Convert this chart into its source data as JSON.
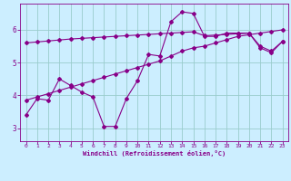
{
  "xlabel": "Windchill (Refroidissement éolien,°C)",
  "bg_color": "#cceeff",
  "grid_color": "#99cccc",
  "line_color": "#880088",
  "xlim": [
    -0.5,
    23.5
  ],
  "ylim": [
    2.6,
    6.8
  ],
  "xticks": [
    0,
    1,
    2,
    3,
    4,
    5,
    6,
    7,
    8,
    9,
    10,
    11,
    12,
    13,
    14,
    15,
    16,
    17,
    18,
    19,
    20,
    21,
    22,
    23
  ],
  "yticks": [
    3,
    4,
    5,
    6
  ],
  "line1_x": [
    0,
    1,
    2,
    3,
    4,
    5,
    6,
    7,
    8,
    9,
    10,
    11,
    12,
    13,
    14,
    15,
    16,
    17,
    18,
    19,
    20,
    21,
    22,
    23
  ],
  "line1_y": [
    3.4,
    3.9,
    3.85,
    4.5,
    4.3,
    4.1,
    3.95,
    3.05,
    3.05,
    3.9,
    4.45,
    5.25,
    5.2,
    6.25,
    6.55,
    6.5,
    5.8,
    5.8,
    5.9,
    5.9,
    5.9,
    5.45,
    5.3,
    5.65
  ],
  "line2_x": [
    0,
    1,
    2,
    3,
    4,
    5,
    6,
    7,
    8,
    9,
    10,
    11,
    12,
    13,
    14,
    15,
    16,
    17,
    18,
    19,
    20,
    21,
    22,
    23
  ],
  "line2_y": [
    3.85,
    3.95,
    4.05,
    4.15,
    4.25,
    4.35,
    4.45,
    4.55,
    4.65,
    4.75,
    4.85,
    4.95,
    5.05,
    5.2,
    5.35,
    5.45,
    5.5,
    5.6,
    5.7,
    5.8,
    5.85,
    5.9,
    5.95,
    6.0
  ],
  "line3_x": [
    0,
    1,
    2,
    3,
    4,
    5,
    6,
    7,
    8,
    9,
    10,
    11,
    12,
    13,
    14,
    15,
    16,
    17,
    18,
    19,
    20,
    21,
    22,
    23
  ],
  "line3_y": [
    5.6,
    5.63,
    5.66,
    5.69,
    5.72,
    5.74,
    5.76,
    5.78,
    5.8,
    5.82,
    5.84,
    5.86,
    5.88,
    5.9,
    5.92,
    5.94,
    5.82,
    5.84,
    5.86,
    5.88,
    5.9,
    5.5,
    5.35,
    5.65
  ]
}
